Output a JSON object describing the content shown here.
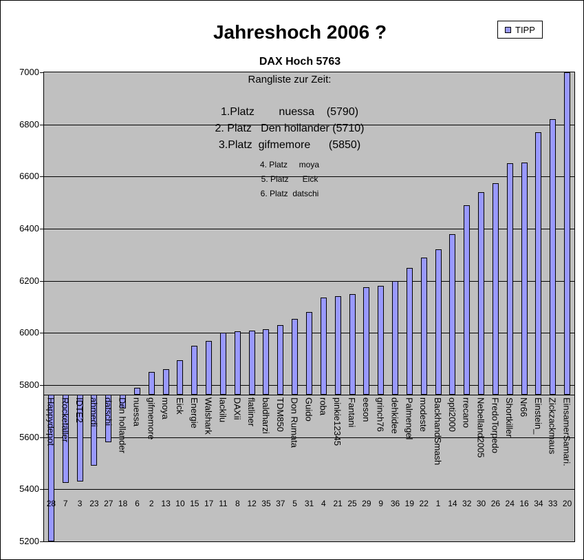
{
  "chart_data": {
    "type": "bar",
    "title": "Jahreshoch 2006 ?",
    "subtitle": "DAX Hoch 5763",
    "series": [
      {
        "name": "TIPP",
        "values": [
          5200,
          5425,
          5430,
          5490,
          5580,
          5710,
          5790,
          5850,
          5860,
          5895,
          5950,
          5970,
          6000,
          6005,
          6010,
          6015,
          6030,
          6055,
          6080,
          6135,
          6140,
          6150,
          6175,
          6180,
          6200,
          6250,
          6290,
          6320,
          6380,
          6490,
          6540,
          6575,
          6650,
          6655,
          6770,
          6820,
          7000
        ]
      }
    ],
    "categories": [
      "Happydepot",
      "Rockefäller",
      "IDTE2",
      "ahmedi",
      "datschi",
      "Den hollander",
      "nuessa",
      "gifmemore",
      "moya",
      "Eick",
      "Energie",
      "Walshark",
      "lackilu",
      "DAXii",
      "flatliner",
      "baldharzi",
      "TDM850",
      "Don Rumata",
      "Guido",
      "roba",
      "pinkie12345",
      "Fantani",
      "eeson",
      "grinch76",
      "dehkidee",
      "Palmengel",
      "modeste",
      "BackhandSmash",
      "opti2000",
      "rrecano",
      "Nebelland2005",
      "FredoTorpedo",
      "Shortkiller",
      "Nr66",
      "Einstein_",
      "Zickzackmaus",
      "EinsamerSamari."
    ],
    "category_numbers": [
      "28",
      "7",
      "3",
      "23",
      "27",
      "18",
      "6",
      "2",
      "13",
      "10",
      "15",
      "17",
      "11",
      "8",
      "12",
      "35",
      "37",
      "5",
      "31",
      "4",
      "21",
      "25",
      "29",
      "9",
      "36",
      "19",
      "22",
      "1",
      "14",
      "32",
      "30",
      "26",
      "24",
      "16",
      "34",
      "33",
      "20"
    ],
    "ylim": [
      5200,
      7000
    ],
    "ytick_step": 200,
    "category_axis_crosses_at": 5763,
    "grid": true,
    "legend_position": "top-right",
    "colors": {
      "bar_fill": "#9999FF",
      "bar_border": "#000000",
      "plot_bg": "#C0C0C0",
      "gridline": "#000000"
    },
    "annotation": {
      "heading": "Rangliste zur Zeit:",
      "lines_large": [
        "1.Platz        nuessa    (5790)",
        "2. Platz   Den hollander (5710)",
        "3.Platz  gifmemore      (5850)"
      ],
      "lines_small": [
        "4. Platz     moya",
        "5. Platz      Eick",
        "6. Platz  datschi"
      ]
    }
  }
}
